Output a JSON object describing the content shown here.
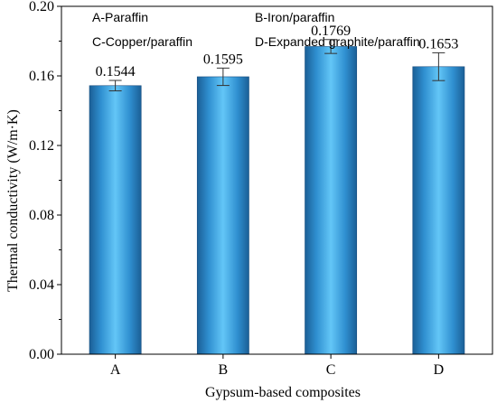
{
  "chart_data": {
    "type": "bar",
    "categories": [
      "A",
      "B",
      "C",
      "D"
    ],
    "values": [
      0.1544,
      0.1595,
      0.1769,
      0.1653
    ],
    "errors": [
      0.003,
      0.005,
      0.004,
      0.008
    ],
    "data_labels": [
      "0.1544",
      "0.1595",
      "0.1769",
      "0.1653"
    ],
    "xlabel": "Gypsum-based composites",
    "ylabel": "Thermal conductivity (W/m·K)",
    "ylim": [
      0,
      0.2
    ],
    "yticks": [
      0.0,
      0.04,
      0.08,
      0.12,
      0.16,
      0.2
    ],
    "ytick_labels": [
      "0.00",
      "0.04",
      "0.08",
      "0.12",
      "0.16",
      "0.20"
    ],
    "legend_entries": [
      "A-Paraffin",
      "B-Iron/paraffin",
      "C-Copper/paraffin",
      "D-Expanded graphite/paraffin"
    ],
    "legend_position": "top",
    "grid": false,
    "bar_color": "#3a9fe0"
  }
}
